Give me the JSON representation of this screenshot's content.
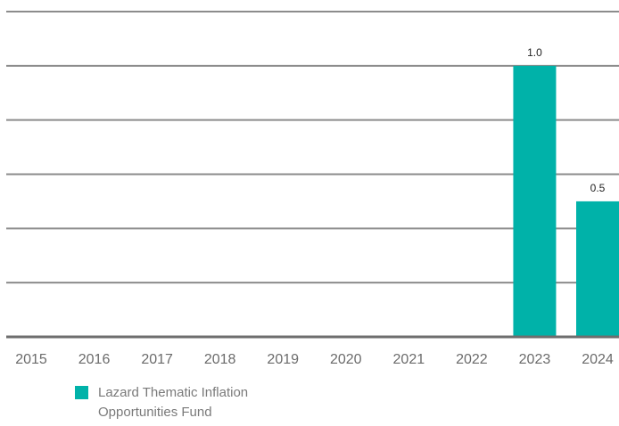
{
  "chart_data": {
    "type": "bar",
    "categories": [
      "2015",
      "2016",
      "2017",
      "2018",
      "2019",
      "2020",
      "2021",
      "2022",
      "2023",
      "2024"
    ],
    "series": [
      {
        "name": "Lazard Thematic Inflation Opportunities Fund",
        "values": [
          null,
          null,
          null,
          null,
          null,
          null,
          null,
          null,
          1.0,
          0.5
        ],
        "data_labels": [
          "",
          "",
          "",
          "",
          "",
          "",
          "",
          "",
          "1.0",
          "0.5"
        ],
        "color": "#00b2a9"
      }
    ],
    "ylim": [
      0,
      1.2
    ],
    "grid": true,
    "legend": {
      "placement": "bottom-left",
      "label": "Lazard Thematic Inflation Opportunities Fund"
    }
  }
}
